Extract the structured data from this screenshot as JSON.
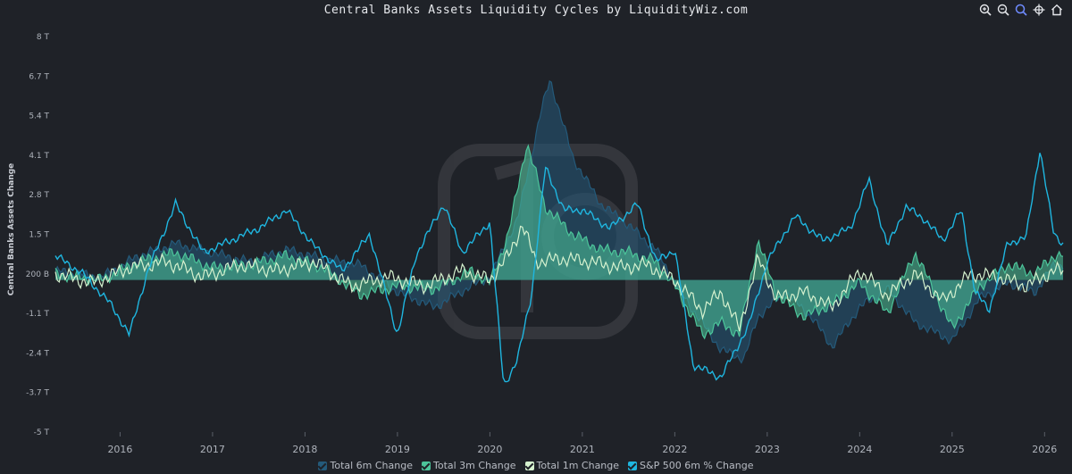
{
  "title": "Central Banks Assets Liquidity Cycles by LiquidityWiz.com",
  "toolbar": [
    {
      "name": "zoom-in-icon",
      "title": "Zoom In"
    },
    {
      "name": "zoom-out-icon",
      "title": "Zoom Out"
    },
    {
      "name": "search-icon",
      "title": "Selection Zoom"
    },
    {
      "name": "pan-icon",
      "title": "Panning"
    },
    {
      "name": "home-icon",
      "title": "Reset Zoom"
    }
  ],
  "colors": {
    "bg": "#1f2228",
    "c6m": "#245a7a",
    "c3m": "#4cc49a",
    "c1m": "#d6f2cf",
    "sp": "#1fb6e0",
    "accent": "#6f8bff"
  },
  "chart_data": {
    "type": "line",
    "ylabel": "Central Banks Assets Change",
    "y_ticks": [
      "8 T",
      "6.7 T",
      "5.4 T",
      "4.1 T",
      "2.8 T",
      "1.5 T",
      "200 B",
      "-1.1 T",
      "-2.4 T",
      "-3.7 T",
      "-5 T"
    ],
    "ylim": [
      -5,
      8
    ],
    "x_ticks": [
      "2016",
      "2017",
      "2018",
      "2019",
      "2020",
      "2021",
      "2022",
      "2023",
      "2024",
      "2025",
      "2026"
    ],
    "xlim": [
      2015.3,
      2026.2
    ],
    "legend": "bottom",
    "series": [
      {
        "name": "Total 6m Change",
        "style": "area",
        "color": "#245a7a",
        "x": [
          2015.3,
          2015.8,
          2016.2,
          2016.6,
          2017.0,
          2017.4,
          2017.8,
          2018.2,
          2018.6,
          2019.0,
          2019.4,
          2019.8,
          2020.0,
          2020.3,
          2020.55,
          2020.65,
          2020.9,
          2021.2,
          2021.5,
          2021.8,
          2022.0,
          2022.2,
          2022.5,
          2022.75,
          2022.9,
          2023.2,
          2023.5,
          2023.7,
          2024.0,
          2024.3,
          2024.6,
          2025.0,
          2025.3,
          2025.6,
          2025.9,
          2026.1
        ],
        "values": [
          0.3,
          0.1,
          0.8,
          1.2,
          0.9,
          0.6,
          1.0,
          0.7,
          0.5,
          -0.4,
          -0.9,
          -0.2,
          0.1,
          2.0,
          5.5,
          6.6,
          4.0,
          2.5,
          1.8,
          1.0,
          -0.1,
          -1.0,
          -2.3,
          -2.6,
          -1.2,
          -0.4,
          -1.3,
          -2.2,
          -0.9,
          -0.3,
          -1.4,
          -2.0,
          -0.6,
          -0.1,
          -0.4,
          0.5
        ]
      },
      {
        "name": "Total 3m Change",
        "style": "area",
        "color": "#4cc49a",
        "x": [
          2015.3,
          2015.8,
          2016.2,
          2016.6,
          2017.0,
          2017.4,
          2017.8,
          2018.2,
          2018.6,
          2019.0,
          2019.4,
          2019.8,
          2020.0,
          2020.2,
          2020.4,
          2020.6,
          2020.9,
          2021.2,
          2021.5,
          2021.8,
          2022.0,
          2022.3,
          2022.5,
          2022.7,
          2022.9,
          2023.1,
          2023.4,
          2023.7,
          2024.0,
          2024.3,
          2024.6,
          2025.0,
          2025.3,
          2025.6,
          2025.9,
          2026.1
        ],
        "values": [
          0.2,
          0.0,
          0.6,
          0.9,
          0.4,
          0.5,
          0.8,
          0.4,
          -0.5,
          -0.2,
          -0.3,
          0.3,
          -0.1,
          1.5,
          4.5,
          2.4,
          1.5,
          1.0,
          0.9,
          0.6,
          -0.2,
          -1.8,
          -1.4,
          -1.8,
          1.3,
          -0.5,
          -1.2,
          -0.8,
          -0.1,
          -1.1,
          0.9,
          -1.6,
          -0.2,
          0.5,
          0.2,
          0.8
        ]
      },
      {
        "name": "Total 1m Change",
        "style": "line",
        "color": "#d6f2cf",
        "x": [
          2015.3,
          2015.7,
          2016.1,
          2016.5,
          2016.9,
          2017.3,
          2017.7,
          2018.1,
          2018.5,
          2018.9,
          2019.3,
          2019.7,
          2020.0,
          2020.2,
          2020.35,
          2020.5,
          2020.8,
          2021.1,
          2021.4,
          2021.7,
          2022.0,
          2022.3,
          2022.5,
          2022.7,
          2022.9,
          2023.1,
          2023.4,
          2023.7,
          2024.0,
          2024.3,
          2024.6,
          2024.9,
          2025.2,
          2025.5,
          2025.8,
          2026.1
        ],
        "values": [
          0.2,
          -0.1,
          0.4,
          0.6,
          0.1,
          0.5,
          0.3,
          0.6,
          -0.2,
          0.1,
          -0.2,
          0.3,
          0.0,
          0.8,
          1.8,
          0.6,
          0.7,
          0.6,
          0.4,
          0.5,
          0.0,
          -1.0,
          -0.4,
          -1.6,
          0.7,
          -0.6,
          -0.4,
          -0.9,
          0.3,
          -0.5,
          0.2,
          -0.7,
          0.2,
          0.1,
          -0.2,
          0.3
        ]
      },
      {
        "name": "S&P 500 6m % Change",
        "style": "line",
        "color": "#1fb6e0",
        "x": [
          2015.3,
          2015.6,
          2015.9,
          2016.1,
          2016.3,
          2016.6,
          2016.9,
          2017.2,
          2017.5,
          2017.8,
          2018.1,
          2018.4,
          2018.7,
          2019.0,
          2019.2,
          2019.5,
          2019.7,
          2020.0,
          2020.15,
          2020.3,
          2020.45,
          2020.6,
          2020.8,
          2021.0,
          2021.3,
          2021.6,
          2021.8,
          2022.0,
          2022.2,
          2022.5,
          2022.8,
          2023.0,
          2023.3,
          2023.6,
          2023.9,
          2024.1,
          2024.3,
          2024.5,
          2024.7,
          2024.9,
          2025.1,
          2025.25,
          2025.4,
          2025.6,
          2025.8,
          2025.95,
          2026.1,
          2026.2
        ],
        "values": [
          0.8,
          0.2,
          -0.8,
          -1.8,
          0.3,
          2.5,
          0.9,
          1.3,
          1.7,
          2.3,
          1.1,
          0.3,
          1.5,
          -1.8,
          0.8,
          2.5,
          0.9,
          1.9,
          -3.5,
          -2.6,
          -0.5,
          3.7,
          2.3,
          2.3,
          1.7,
          2.5,
          0.6,
          1.0,
          -2.8,
          -3.2,
          -1.5,
          0.6,
          2.1,
          1.3,
          1.7,
          3.3,
          1.1,
          2.4,
          2.0,
          1.3,
          2.3,
          -0.4,
          -1.0,
          1.2,
          1.4,
          4.3,
          1.5,
          1.2
        ]
      }
    ]
  },
  "legend_items": [
    {
      "name": "legend-6m",
      "label": "Total 6m Change",
      "color": "#245a7a"
    },
    {
      "name": "legend-3m",
      "label": "Total 3m Change",
      "color": "#4cc49a"
    },
    {
      "name": "legend-1m",
      "label": "Total 1m Change",
      "color": "#d6f2cf"
    },
    {
      "name": "legend-sp",
      "label": "S&P 500 6m % Change",
      "color": "#1fb6e0"
    }
  ]
}
